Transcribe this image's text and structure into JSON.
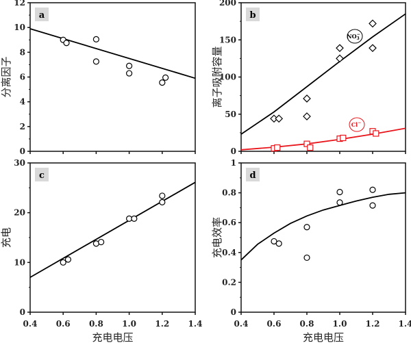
{
  "chart_data": [
    {
      "panel": "a",
      "type": "scatter",
      "xlabel": "",
      "ylabel": "分离因子",
      "xlim": [
        0.4,
        1.4
      ],
      "ylim": [
        0,
        12
      ],
      "xticks": [
        "0.4",
        "0.6",
        "0.8",
        "1.0",
        "1.2",
        "1.4"
      ],
      "show_xticklabels": false,
      "yticks": [
        "0",
        "2",
        "4",
        "6",
        "8",
        "10",
        "12"
      ],
      "series": [
        {
          "marker": "circle",
          "color": "#000000",
          "points": [
            [
              0.6,
              9.0
            ],
            [
              0.62,
              8.75
            ],
            [
              0.8,
              9.05
            ],
            [
              0.8,
              7.25
            ],
            [
              1.0,
              6.9
            ],
            [
              1.0,
              6.3
            ],
            [
              1.2,
              5.55
            ],
            [
              1.22,
              5.95
            ]
          ],
          "fit": [
            [
              0.4,
              9.9
            ],
            [
              1.4,
              5.9
            ]
          ]
        }
      ]
    },
    {
      "panel": "b",
      "type": "scatter",
      "xlabel": "",
      "ylabel": "离子吸附容量",
      "xlim": [
        0.4,
        1.4
      ],
      "ylim": [
        0,
        200
      ],
      "xticks": [
        "0.4",
        "0.6",
        "0.8",
        "1.0",
        "1.2",
        "1.4"
      ],
      "show_xticklabels": false,
      "yticks": [
        "0",
        "50",
        "100",
        "150",
        "200"
      ],
      "series": [
        {
          "name": "NO3-",
          "label_main": "NO",
          "label_sub": "3",
          "label_sup": "−",
          "marker": "diamond",
          "color": "#000000",
          "points": [
            [
              0.6,
              44
            ],
            [
              0.63,
              44
            ],
            [
              0.8,
              71
            ],
            [
              0.8,
              47
            ],
            [
              1.0,
              139
            ],
            [
              1.0,
              125
            ],
            [
              1.2,
              172
            ],
            [
              1.2,
              139
            ]
          ],
          "fit": [
            [
              0.4,
              23
            ],
            [
              0.6,
              53
            ],
            [
              0.8,
              87
            ],
            [
              1.0,
              121
            ],
            [
              1.2,
              154
            ],
            [
              1.4,
              185
            ]
          ]
        },
        {
          "name": "Cl-",
          "label_main": "Cl",
          "label_sub": "",
          "label_sup": "−",
          "marker": "square",
          "color": "#e8141a",
          "points": [
            [
              0.6,
              4
            ],
            [
              0.62,
              5
            ],
            [
              0.8,
              10
            ],
            [
              0.82,
              5
            ],
            [
              1.0,
              17
            ],
            [
              1.02,
              18
            ],
            [
              1.2,
              27
            ],
            [
              1.22,
              24
            ]
          ],
          "fit": [
            [
              0.4,
              2
            ],
            [
              0.6,
              5.5
            ],
            [
              0.8,
              10
            ],
            [
              1.0,
              16
            ],
            [
              1.2,
              23
            ],
            [
              1.4,
              31
            ]
          ]
        }
      ]
    },
    {
      "panel": "c",
      "type": "scatter",
      "xlabel": "充电电压",
      "ylabel": "充电",
      "xlim": [
        0.4,
        1.4
      ],
      "ylim": [
        0,
        30
      ],
      "xticks": [
        "0.4",
        "0.6",
        "0.8",
        "1.0",
        "1.2",
        "1.4"
      ],
      "show_xticklabels": true,
      "yticks": [
        "0",
        "10",
        "20",
        "30"
      ],
      "series": [
        {
          "marker": "circle",
          "color": "#000000",
          "points": [
            [
              0.6,
              10
            ],
            [
              0.63,
              10.6
            ],
            [
              0.8,
              13.8
            ],
            [
              0.83,
              14.1
            ],
            [
              1.0,
              18.8
            ],
            [
              1.03,
              18.8
            ],
            [
              1.2,
              23.4
            ],
            [
              1.2,
              22.1
            ]
          ],
          "fit": [
            [
              0.4,
              7
            ],
            [
              1.4,
              26.1
            ]
          ]
        }
      ]
    },
    {
      "panel": "d",
      "type": "scatter",
      "xlabel": "充电电压",
      "ylabel": "充电效率",
      "xlim": [
        0.4,
        1.4
      ],
      "ylim": [
        0,
        1
      ],
      "xticks": [
        "0.4",
        "0.6",
        "0.8",
        "1.0",
        "1.2",
        "1.4"
      ],
      "show_xticklabels": true,
      "yticks": [
        "0",
        "0.2",
        "0.4",
        "0.6",
        "0.8",
        "1"
      ],
      "series": [
        {
          "marker": "circle",
          "color": "#000000",
          "points": [
            [
              0.6,
              0.475
            ],
            [
              0.63,
              0.46
            ],
            [
              0.8,
              0.57
            ],
            [
              0.8,
              0.365
            ],
            [
              1.0,
              0.805
            ],
            [
              1.0,
              0.735
            ],
            [
              1.2,
              0.82
            ],
            [
              1.2,
              0.715
            ]
          ],
          "fit": [
            [
              0.4,
              0.35
            ],
            [
              0.5,
              0.455
            ],
            [
              0.6,
              0.53
            ],
            [
              0.7,
              0.595
            ],
            [
              0.8,
              0.645
            ],
            [
              0.9,
              0.685
            ],
            [
              1.0,
              0.715
            ],
            [
              1.1,
              0.745
            ],
            [
              1.2,
              0.77
            ],
            [
              1.3,
              0.79
            ],
            [
              1.4,
              0.8
            ]
          ]
        }
      ]
    }
  ]
}
